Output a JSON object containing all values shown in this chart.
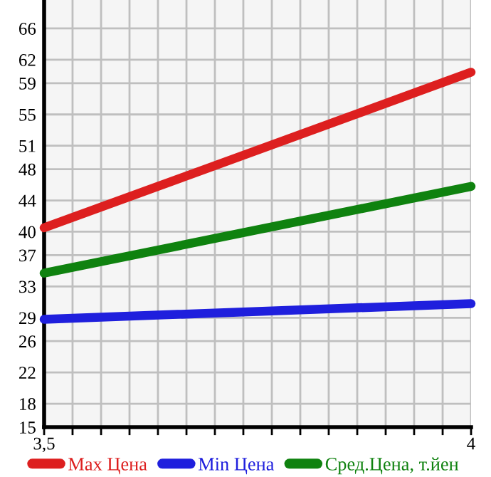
{
  "chart_data": {
    "type": "line",
    "x": [
      3.5,
      4
    ],
    "series": [
      {
        "name": "Max Цена",
        "color": "#dd1f1f",
        "values": [
          40.5,
          60.4
        ]
      },
      {
        "name": "Min Цена",
        "color": "#1f1fdd",
        "values": [
          28.8,
          30.8
        ]
      },
      {
        "name": "Сред.Цена, т.йен",
        "color": "#0f820f",
        "values": [
          34.7,
          45.8
        ]
      }
    ],
    "xlim": [
      3.5,
      4
    ],
    "xticks": [
      {
        "value": 3.5,
        "label": "3,5"
      },
      {
        "value": 3.5333,
        "label": null
      },
      {
        "value": 3.5667,
        "label": null
      },
      {
        "value": 3.6,
        "label": null
      },
      {
        "value": 3.6333,
        "label": null
      },
      {
        "value": 3.6667,
        "label": null
      },
      {
        "value": 3.7,
        "label": null
      },
      {
        "value": 3.7333,
        "label": null
      },
      {
        "value": 3.7667,
        "label": null
      },
      {
        "value": 3.8,
        "label": null
      },
      {
        "value": 3.8333,
        "label": null
      },
      {
        "value": 3.8667,
        "label": null
      },
      {
        "value": 3.9,
        "label": null
      },
      {
        "value": 3.9333,
        "label": null
      },
      {
        "value": 3.9667,
        "label": null
      },
      {
        "value": 4,
        "label": "4"
      }
    ],
    "ylim": [
      15,
      69.64
    ],
    "yticks": [
      15,
      18,
      22,
      26,
      29,
      33,
      37,
      40,
      44,
      48,
      51,
      55,
      59,
      62,
      66
    ],
    "grid": true,
    "legend": "bottom",
    "marker": "none",
    "line_style": "solid"
  }
}
